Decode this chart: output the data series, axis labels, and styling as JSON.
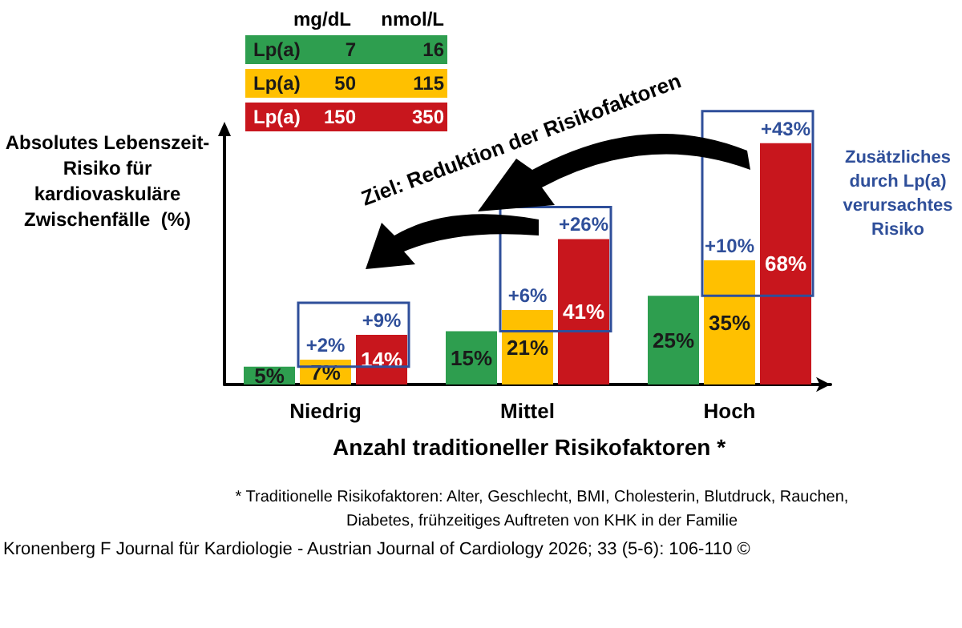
{
  "chart_data": {
    "type": "bar",
    "xlabel": "Anzahl traditioneller Risikofaktoren *",
    "ylabel": "Absolutes Lebenszeit-\nRisiko für\nkardiovaskuläre\nZwischenfälle  (%)",
    "categories": [
      "Niedrig",
      "Mittel",
      "Hoch"
    ],
    "series": [
      {
        "color": "#2e9e4f",
        "values": [
          5,
          15,
          25
        ],
        "value_labels": [
          "5%",
          "15%",
          "25%"
        ]
      },
      {
        "color": "#ffc000",
        "values": [
          7,
          21,
          35
        ],
        "value_labels": [
          "7%",
          "21%",
          "35%"
        ]
      },
      {
        "color": "#c8161d",
        "values": [
          14,
          41,
          68
        ],
        "value_labels": [
          "14%",
          "41%",
          "68%"
        ]
      }
    ],
    "tick_labels": "x",
    "annotations": [
      "mg/dL",
      "nmol/L",
      "Lp(a)",
      "7",
      "16",
      "Lp(a)",
      "50",
      "115",
      "Lp(a)",
      "150",
      "350",
      "Ziel: Reduktion der Risikofaktoren",
      "Zusätzliches\ndurch Lp(a)\nverursachtes\nRisiko",
      "* Traditionelle Risikofaktoren: Alter, Geschlecht, BMI, Cholesterin, Blutdruck, Rauchen,\nDiabetes, frühzeitiges Auftreten von KHK in der Familie",
      "Kronenberg F Journal für Kardiologie - Austrian Journal of Cardiology 2026; 33 (5-6): 106-110 ©",
      "+2%",
      "+9%",
      "+6%",
      "+26%",
      "+10%",
      "+43%"
    ]
  }
}
